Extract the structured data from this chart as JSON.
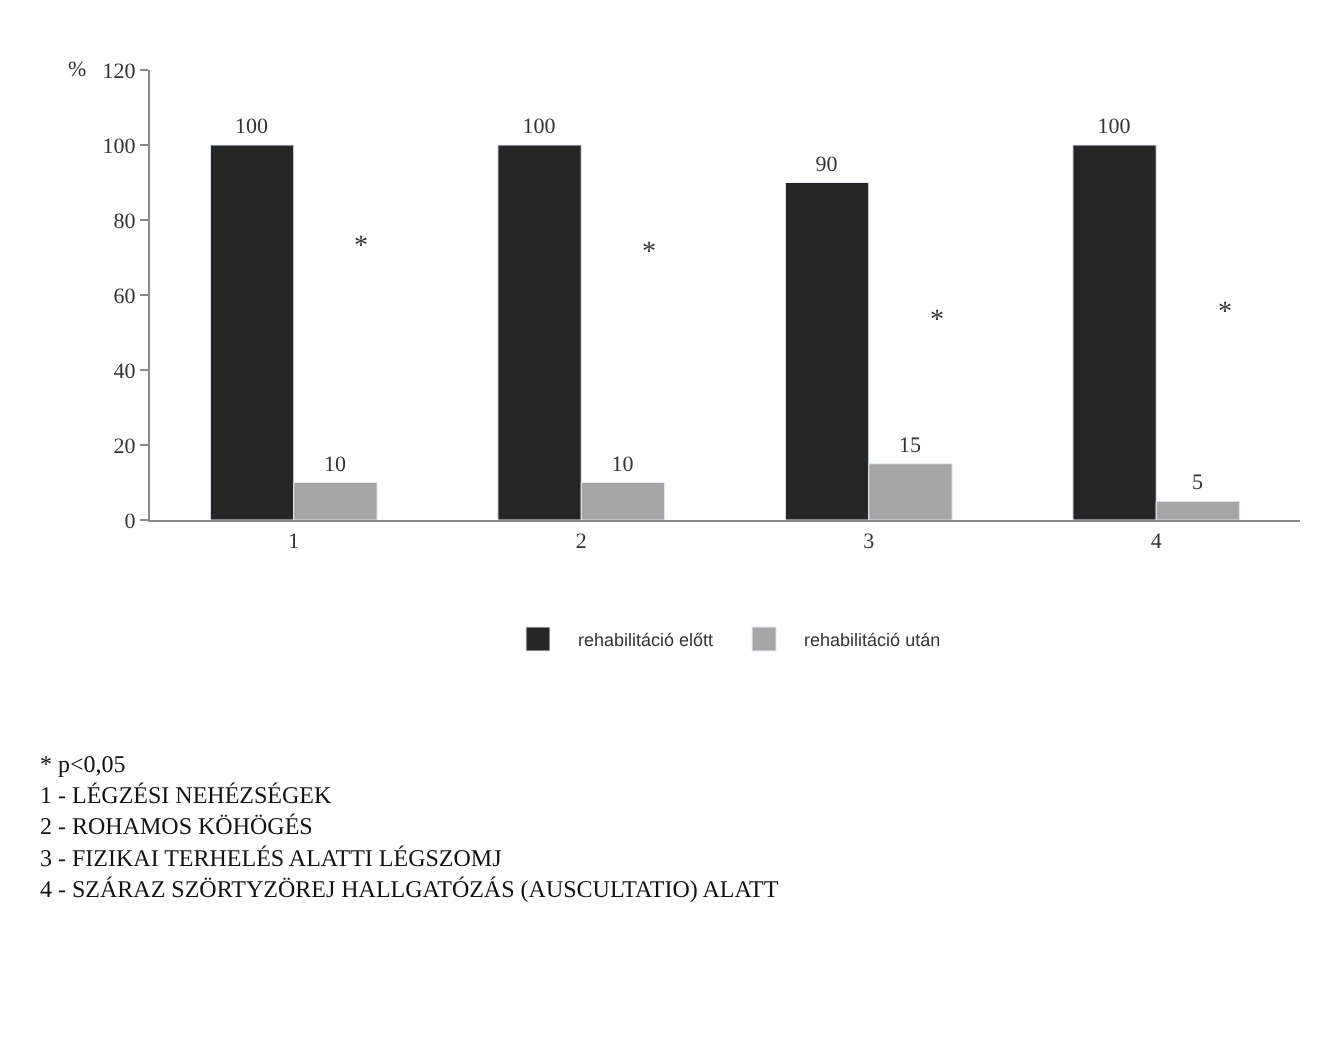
{
  "chart_data": {
    "type": "bar",
    "ylabel": "%",
    "categories": [
      "1",
      "2",
      "3",
      "4"
    ],
    "series": [
      {
        "name": "rehabilitáció előtt",
        "color": "#262626",
        "values": [
          100,
          100,
          90,
          100
        ]
      },
      {
        "name": "rehabilitáció után",
        "color": "#a6a6a6",
        "values": [
          10,
          10,
          15,
          5
        ]
      }
    ],
    "ylim": [
      0,
      120
    ],
    "yticks": [
      0,
      20,
      40,
      60,
      80,
      100,
      120
    ],
    "data_labels": true,
    "legend": "bottom",
    "annotations": [
      {
        "text": "*",
        "x": "1",
        "y": 73
      },
      {
        "text": "*",
        "x": "2",
        "y": 71
      },
      {
        "text": "*",
        "x": "3",
        "y": 53
      },
      {
        "text": "*",
        "x": "4",
        "y": 55
      },
      "* p<0,05\n1 - LÉGZÉSI NEHÉZSÉGEK\n2 - ROHAMOS KÖHÖGÉS\n3 - FIZIKAI TERHELÉS ALATTI LÉGSZOMJ\n4 - SZÁRAZ SZÖRTYZÖREJ HALLGATÓZÁS (AUSCULTATIO) ALATT"
    ]
  }
}
